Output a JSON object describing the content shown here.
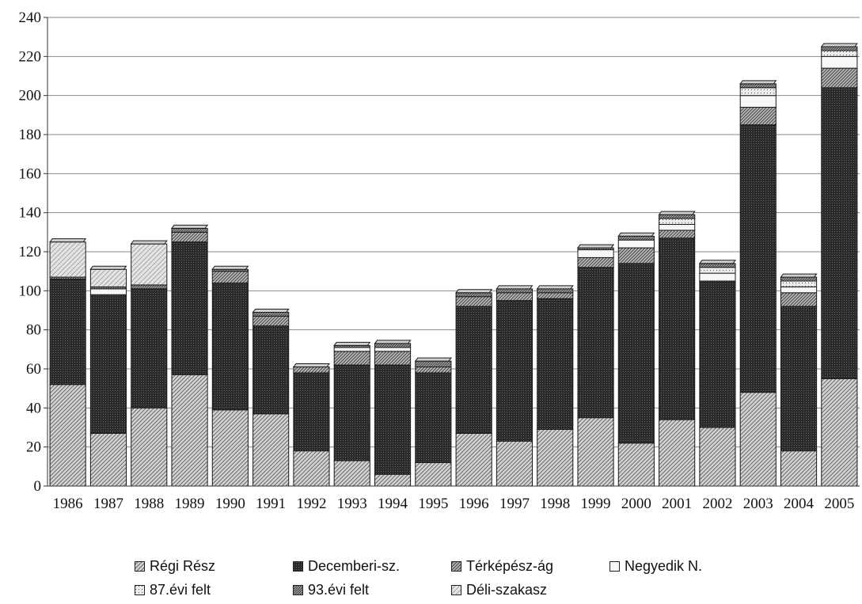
{
  "chart_data": {
    "type": "bar",
    "stacked": true,
    "title": "",
    "xlabel": "",
    "ylabel": "",
    "ylim": [
      0,
      240
    ],
    "yticks": [
      0,
      20,
      40,
      60,
      80,
      100,
      120,
      140,
      160,
      180,
      200,
      220,
      240
    ],
    "grid": true,
    "legend_position": "bottom",
    "categories": [
      "1986",
      "1987",
      "1988",
      "1989",
      "1990",
      "1991",
      "1992",
      "1993",
      "1994",
      "1995",
      "1996",
      "1997",
      "1998",
      "1999",
      "2000",
      "2001",
      "2002",
      "2003",
      "2004",
      "2005"
    ],
    "series": [
      {
        "name": "Régi Rész",
        "values": [
          52,
          27,
          40,
          57,
          39,
          37,
          18,
          13,
          6,
          12,
          27,
          23,
          29,
          35,
          22,
          34,
          30,
          48,
          18,
          55
        ]
      },
      {
        "name": "Decemberi-sz.",
        "values": [
          54,
          71,
          61,
          68,
          65,
          45,
          40,
          49,
          56,
          46,
          65,
          72,
          67,
          77,
          92,
          93,
          75,
          137,
          74,
          149
        ]
      },
      {
        "name": "Térképész-ág",
        "values": [
          0,
          0,
          0,
          5,
          6,
          5,
          3,
          7,
          7,
          3,
          5,
          4,
          3,
          5,
          8,
          4,
          0,
          9,
          7,
          10
        ]
      },
      {
        "name": "Negyedik N.",
        "values": [
          0,
          3,
          0,
          0,
          0,
          0,
          0,
          2,
          2,
          0,
          0,
          0,
          0,
          4,
          4,
          3,
          4,
          6,
          3,
          6
        ]
      },
      {
        "name": "87.évi felt",
        "values": [
          0,
          0,
          0,
          0,
          0,
          0,
          0,
          0,
          0,
          0,
          0,
          0,
          0,
          0,
          0,
          3,
          3,
          4,
          3,
          3
        ]
      },
      {
        "name": "93.évi felt",
        "values": [
          1,
          1,
          2,
          2,
          1,
          2,
          0,
          1,
          2,
          3,
          2,
          2,
          2,
          1,
          2,
          2,
          2,
          2,
          2,
          2
        ]
      },
      {
        "name": "Déli-szakasz",
        "values": [
          18,
          9,
          21,
          0,
          0,
          0,
          0,
          0,
          0,
          0,
          0,
          0,
          0,
          0,
          0,
          0,
          0,
          0,
          0,
          0
        ]
      }
    ],
    "series_patterns": [
      "p-diag",
      "p-dark",
      "p-hatch",
      "p-white",
      "p-grid",
      "p-dense",
      "p-light"
    ]
  }
}
